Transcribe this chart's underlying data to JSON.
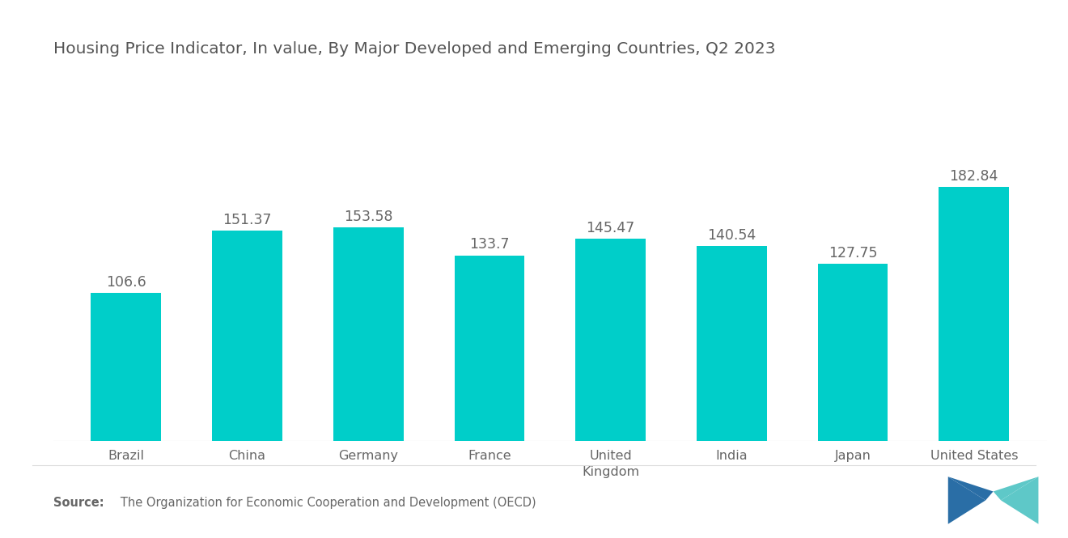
{
  "title": "Housing Price Indicator, In value, By Major Developed and Emerging Countries, Q2 2023",
  "categories": [
    "Brazil",
    "China",
    "Germany",
    "France",
    "United\nKingdom",
    "India",
    "Japan",
    "United States"
  ],
  "values": [
    106.6,
    151.37,
    153.58,
    133.7,
    145.47,
    140.54,
    127.75,
    182.84
  ],
  "bar_color": "#00CEC9",
  "background_color": "#FFFFFF",
  "title_color": "#555555",
  "label_color": "#666666",
  "source_bold": "Source:",
  "source_text": "   The Organization for Economic Cooperation and Development (OECD)",
  "ylim": [
    0,
    240
  ],
  "bar_width": 0.58,
  "title_fontsize": 14.5,
  "value_fontsize": 12.5,
  "tick_fontsize": 11.5,
  "source_fontsize": 10.5,
  "logo_left_color": "#2A6EA6",
  "logo_right_color": "#5EC8C8",
  "logo_mid_color": "#4AACB8"
}
